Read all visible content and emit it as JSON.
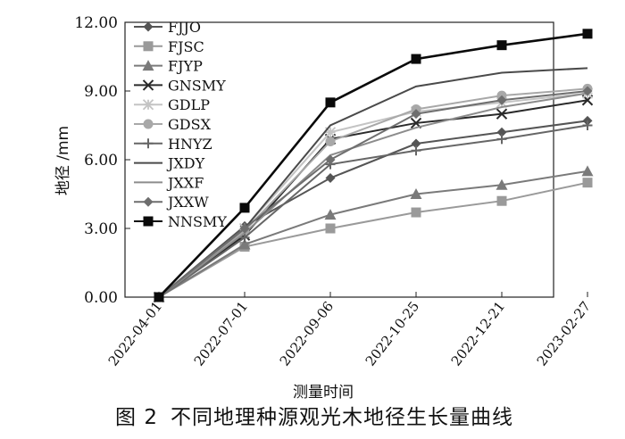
{
  "caption": {
    "figure_label": "图 2",
    "text": "不同地理种源观光木地径生长量曲线"
  },
  "chart_data": {
    "type": "line",
    "xlabel": "测量时间",
    "ylabel": "地径 /mm",
    "ylim": [
      0,
      12
    ],
    "yticks": [
      "0.00",
      "3.00",
      "6.00",
      "9.00",
      "12.00"
    ],
    "categories": [
      "2022-04-01",
      "2022-07-01",
      "2022-09-06",
      "2022-10-25",
      "2022-12-21",
      "2023-02-27"
    ],
    "grid": false,
    "legend": "top-left",
    "series": [
      {
        "name": "FJJO",
        "color": "#555555",
        "marker": "diamond",
        "values": [
          0,
          3.1,
          5.2,
          6.7,
          7.2,
          7.7
        ]
      },
      {
        "name": "FJSC",
        "color": "#9a9a9a",
        "marker": "square",
        "values": [
          0,
          2.2,
          3.0,
          3.7,
          4.2,
          5.0
        ]
      },
      {
        "name": "FJYP",
        "color": "#7a7a7a",
        "marker": "triangle",
        "values": [
          0,
          2.3,
          3.6,
          4.5,
          4.9,
          5.5
        ]
      },
      {
        "name": "GNSMY",
        "color": "#2a2a2a",
        "marker": "x",
        "values": [
          0,
          2.7,
          6.9,
          7.6,
          8.0,
          8.6
        ]
      },
      {
        "name": "GDLP",
        "color": "#c4c4c4",
        "marker": "star",
        "values": [
          0,
          3.0,
          7.2,
          8.1,
          8.5,
          8.9
        ]
      },
      {
        "name": "GDSX",
        "color": "#a8a8a8",
        "marker": "circle",
        "values": [
          0,
          2.9,
          6.8,
          8.2,
          8.8,
          9.1
        ]
      },
      {
        "name": "HNYZ",
        "color": "#666666",
        "marker": "plus",
        "values": [
          0,
          2.6,
          5.8,
          6.4,
          6.9,
          7.5
        ]
      },
      {
        "name": "JXDY",
        "color": "#4a4a4a",
        "marker": "none",
        "values": [
          0,
          3.0,
          7.5,
          9.2,
          9.8,
          10.0
        ]
      },
      {
        "name": "JXXF",
        "color": "#8c8c8c",
        "marker": "none",
        "values": [
          0,
          2.8,
          6.2,
          7.4,
          8.3,
          8.9
        ]
      },
      {
        "name": "JXXW",
        "color": "#6e6e6e",
        "marker": "diamond",
        "values": [
          0,
          3.0,
          6.0,
          8.0,
          8.6,
          9.0
        ]
      },
      {
        "name": "NNSMY",
        "color": "#0a0a0a",
        "marker": "square",
        "values": [
          0,
          3.9,
          8.5,
          10.4,
          11.0,
          11.5
        ]
      }
    ]
  }
}
